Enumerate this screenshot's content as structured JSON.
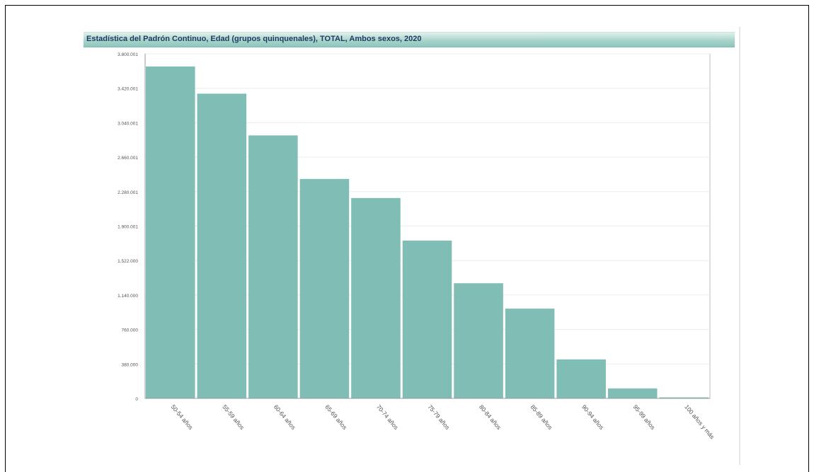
{
  "chart_data": {
    "type": "bar",
    "title": "Estadística del Padrón Continuo, Edad (grupos quinquenales), TOTAL, Ambos sexos, 2020",
    "xlabel": "",
    "ylabel": "",
    "categories": [
      "50-54 años",
      "55-59 años",
      "60-64 años",
      "65-69 años",
      "70-74 años",
      "75-79 años",
      "80-84 años",
      "85-89 años",
      "90-94 años",
      "95-99 años",
      "100 años y más"
    ],
    "values": [
      3660000,
      3360000,
      2900000,
      2420000,
      2210000,
      1740000,
      1270000,
      990000,
      430000,
      110000,
      11000
    ],
    "y_ticks": [
      "0",
      "380.000",
      "760.000",
      "1.140.000",
      "1.522.000",
      "1.900.001",
      "2.280.001",
      "2.660.001",
      "3.040.001",
      "3.420.001",
      "3.800.001"
    ],
    "ylim": [
      0,
      3800001
    ],
    "grid": true,
    "colors": {
      "bar": "#7fbdb5",
      "grid": "#ececec",
      "axis": "#999999",
      "title_text": "#1f3a5f"
    }
  }
}
